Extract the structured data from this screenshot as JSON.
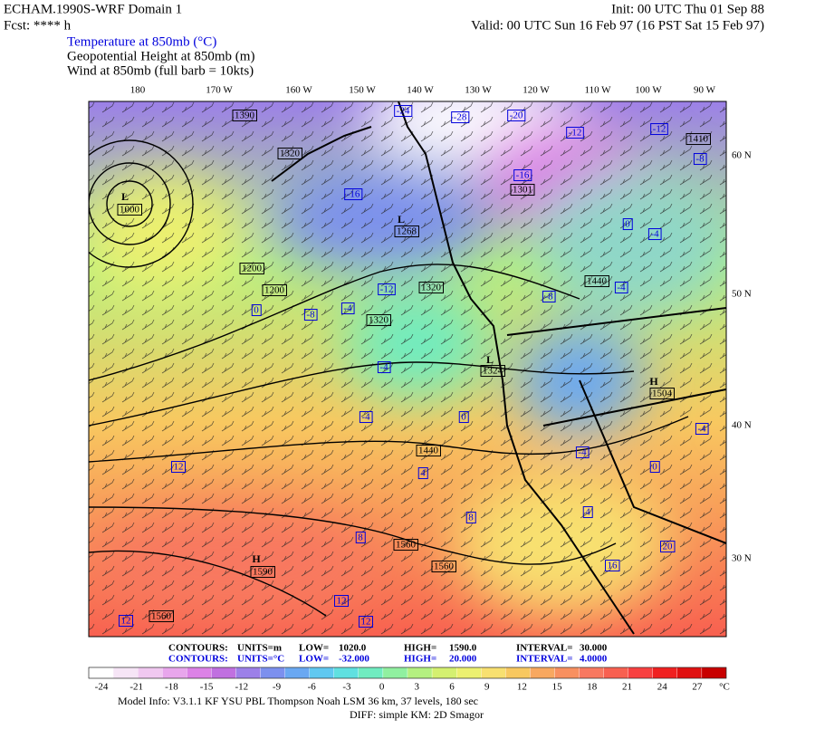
{
  "header": {
    "title": "ECHAM.1990S-WRF Domain 1",
    "init": "Init: 00 UTC Thu 01 Sep 88",
    "fcst": "Fcst: **** h",
    "valid": "Valid: 00 UTC Sun 16 Feb 97 (16 PST Sat 15 Feb 97)",
    "fields": [
      "Temperature at 850mb (°C)",
      "Geopotential Height at 850mb (m)",
      "Wind at 850mb (full barb = 10kts)"
    ]
  },
  "map": {
    "lon_labels": [
      "180",
      "170 W",
      "160 W",
      "150 W",
      "140 W",
      "130 W",
      "120 W",
      "110 W",
      "100 W",
      "90 W"
    ],
    "lat_labels": [
      "60 N",
      "50 N",
      "40 N",
      "30 N"
    ],
    "centers": [
      "L",
      "L",
      "L",
      "H",
      "H"
    ],
    "height_labels": [
      "1390",
      "1320",
      "1000",
      "1268",
      "1301",
      "1200",
      "1200",
      "1320",
      "1320",
      "1324",
      "1440",
      "1504",
      "1440",
      "1560",
      "1560",
      "1590",
      "1560",
      "1410"
    ],
    "temp_labels": [
      "-24",
      "-28",
      "-20",
      "-12",
      "-12",
      "-16",
      "-16",
      "-8",
      "0",
      "-4",
      "-12",
      "-8",
      "-4",
      "-8",
      "-4",
      "0",
      "-4",
      "-4",
      "0",
      "4",
      "-4",
      "0",
      "4",
      "-4",
      "8",
      "12",
      "12",
      "12",
      "12",
      "16",
      "20",
      "8"
    ]
  },
  "contour_info": [
    [
      "CONTOURS:",
      "UNITS=m",
      "LOW=",
      "1020.0",
      "HIGH=",
      "1590.0",
      "INTERVAL=",
      "30.000"
    ],
    [
      "CONTOURS:",
      "UNITS=°C",
      "LOW=",
      "-32.000",
      "HIGH=",
      "20.000",
      "INTERVAL=",
      "4.0000"
    ]
  ],
  "colorbar": {
    "labels": [
      "-24",
      "-21",
      "-18",
      "-15",
      "-12",
      "-9",
      "-6",
      "-3",
      "0",
      "3",
      "6",
      "9",
      "12",
      "15",
      "18",
      "21",
      "24",
      "27"
    ],
    "unit": "°C",
    "colors": [
      "#ffffff",
      "#f6e5f6",
      "#f0c8f0",
      "#e8a6ec",
      "#dc82e6",
      "#c070e0",
      "#9c80e8",
      "#7c90ee",
      "#6aa8f2",
      "#60c8f0",
      "#60e0e0",
      "#70ecc0",
      "#90f0a0",
      "#b4f080",
      "#d4f070",
      "#ecf070",
      "#f8e070",
      "#f8c860",
      "#f8a860",
      "#f89060",
      "#f87860",
      "#f86050",
      "#f84040",
      "#f02020",
      "#e01010",
      "#c80000"
    ]
  },
  "footer": [
    "Model Info: V3.1.1    KF      YSU PBL   Thompson     Noah LSM   36 km,    37 levels,   180 sec",
    "DIFF: simple KM: 2D Smagor"
  ]
}
